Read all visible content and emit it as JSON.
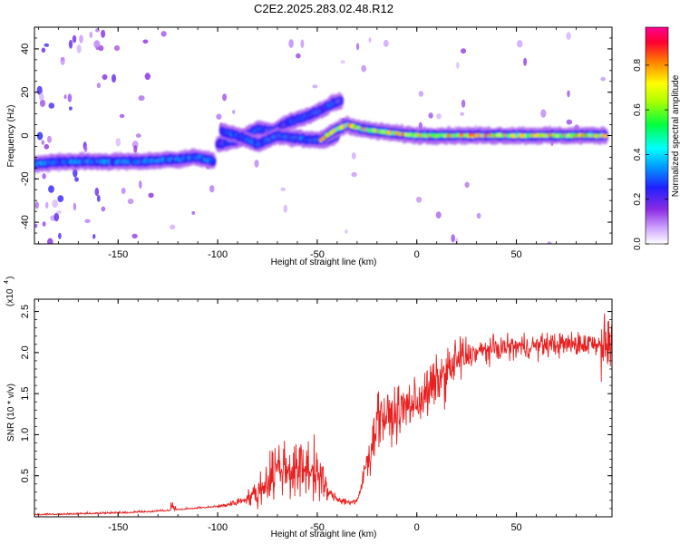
{
  "title": "C2E2.2025.283.02.48.R12",
  "chart_data": [
    {
      "type": "heatmap",
      "xlabel": "Height of straight line (km)",
      "ylabel": "Frequency (Hz)",
      "xlim": [
        -192,
        98
      ],
      "ylim": [
        -50,
        50
      ],
      "xticks": [
        -150,
        -100,
        -50,
        0,
        50
      ],
      "yticks": [
        -40,
        -20,
        0,
        20,
        40
      ],
      "colorbar": {
        "label": "Normalized spectral amplitude",
        "range": [
          0,
          0.97
        ],
        "ticks": [
          "0.0",
          "0.2",
          "0.4",
          "0.6",
          "0.8"
        ],
        "colors": [
          "#ffffff",
          "#c080ff",
          "#8000ff",
          "#0000ff",
          "#00ffff",
          "#00ff00",
          "#ffff00",
          "#ff8000",
          "#ff0040",
          "#ff00a0"
        ]
      },
      "ridges": [
        {
          "x": [
            -192,
            -175,
            -160,
            -140,
            -120,
            -110,
            -102
          ],
          "y": [
            -13,
            -12,
            -12,
            -12,
            -11,
            -10,
            -12
          ],
          "amplitude": 0.35
        },
        {
          "x": [
            -100,
            -90,
            -80,
            -72,
            -65,
            -58,
            -50,
            -42,
            -38
          ],
          "y": [
            -4,
            -2,
            3,
            2,
            6,
            8,
            11,
            15,
            16
          ],
          "amplitude": 0.3
        },
        {
          "x": [
            -98,
            -90,
            -80,
            -70,
            -62,
            -52,
            -45,
            -40
          ],
          "y": [
            2,
            0,
            -4,
            0,
            -1,
            -2,
            -2,
            0
          ],
          "amplitude": 0.32
        },
        {
          "x": [
            -48,
            -42,
            -35,
            -28,
            -20,
            -10,
            0,
            10,
            30,
            50,
            70,
            95
          ],
          "y": [
            -2,
            2,
            5,
            3,
            2,
            1,
            0,
            0,
            0,
            0,
            0,
            0
          ],
          "amplitude": 0.85
        }
      ]
    },
    {
      "type": "line",
      "xlabel": "Height of straight line (km)",
      "ylabel": "SNR (10 * v/v)",
      "scale_note": "(x10",
      "scale_exp": "4",
      "xlim": [
        -192,
        98
      ],
      "ylim": [
        0,
        2.65
      ],
      "xticks": [
        -150,
        -100,
        -50,
        0,
        50
      ],
      "yticks": [
        "0.5",
        "1.0",
        "1.5",
        "2.0",
        "2.5"
      ],
      "series": [
        {
          "color": "#e82020",
          "x": [
            -192,
            -170,
            -150,
            -130,
            -120,
            -110,
            -100,
            -90,
            -80,
            -75,
            -70,
            -65,
            -60,
            -55,
            -50,
            -45,
            -40,
            -35,
            -30,
            -28,
            -25,
            -22,
            -20,
            -15,
            -10,
            -5,
            0,
            5,
            10,
            15,
            20,
            25,
            30,
            40,
            50,
            60,
            70,
            80,
            90,
            98
          ],
          "y": [
            0.02,
            0.03,
            0.04,
            0.06,
            0.08,
            0.1,
            0.12,
            0.18,
            0.28,
            0.45,
            0.6,
            0.6,
            0.55,
            0.6,
            0.55,
            0.3,
            0.22,
            0.18,
            0.18,
            0.35,
            0.7,
            0.9,
            1.25,
            1.2,
            1.25,
            1.35,
            1.4,
            1.5,
            1.65,
            1.75,
            1.9,
            1.95,
            2.0,
            2.05,
            2.07,
            2.08,
            2.1,
            2.1,
            2.12,
            2.1
          ]
        }
      ]
    }
  ]
}
